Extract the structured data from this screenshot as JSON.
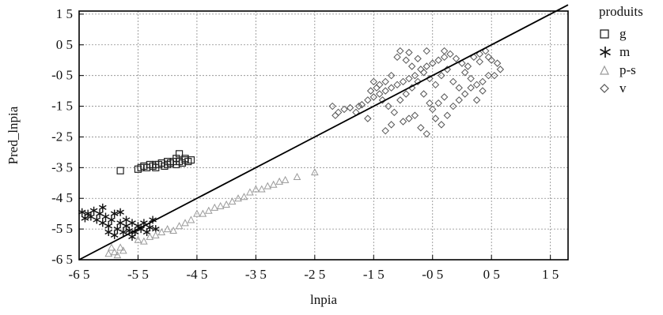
{
  "chart_data": {
    "type": "scatter",
    "title": "",
    "xlabel": "lnpia",
    "ylabel": "Pred_lnpia",
    "xlim": [
      -6.5,
      1.8
    ],
    "ylim": [
      -6.5,
      1.6
    ],
    "x_ticks": [
      -6.5,
      -5.5,
      -4.5,
      -3.5,
      -2.5,
      -1.5,
      -0.5,
      0.5,
      1.5
    ],
    "x_tick_labels": [
      "-6 5",
      "-5 5",
      "-4 5",
      "-3 5",
      "-2 5",
      "-1 5",
      "-0 5",
      "0 5",
      "1 5"
    ],
    "y_ticks": [
      -6.5,
      -5.5,
      -4.5,
      -3.5,
      -2.5,
      -1.5,
      -0.5,
      0.5,
      1.5
    ],
    "y_tick_labels": [
      "-6 5",
      "-5 5",
      "-4 5",
      "-3 5",
      "-2 5",
      "-1 5",
      "-0 5",
      "0 5",
      "1 5"
    ],
    "grid": true,
    "legend": {
      "title": "produits",
      "position": "right",
      "entries": [
        {
          "label": "g",
          "marker": "square",
          "color": "#222222"
        },
        {
          "label": "m",
          "marker": "asterisk",
          "color": "#111111"
        },
        {
          "label": "p-s",
          "marker": "triangle",
          "color": "#9a9a9a"
        },
        {
          "label": "v",
          "marker": "diamond",
          "color": "#555555"
        }
      ]
    },
    "reference_line": {
      "x": [
        -6.5,
        1.8
      ],
      "y": [
        -6.5,
        1.8
      ],
      "color": "#000000"
    },
    "series": [
      {
        "name": "g",
        "marker": "square",
        "color": "#222222",
        "points": [
          [
            -5.8,
            -3.6
          ],
          [
            -5.5,
            -3.55
          ],
          [
            -5.45,
            -3.5
          ],
          [
            -5.4,
            -3.45
          ],
          [
            -5.35,
            -3.5
          ],
          [
            -5.3,
            -3.4
          ],
          [
            -5.25,
            -3.45
          ],
          [
            -5.2,
            -3.5
          ],
          [
            -5.15,
            -3.4
          ],
          [
            -5.1,
            -3.35
          ],
          [
            -5.05,
            -3.45
          ],
          [
            -5.0,
            -3.4
          ],
          [
            -4.95,
            -3.35
          ],
          [
            -4.9,
            -3.3
          ],
          [
            -4.85,
            -3.4
          ],
          [
            -4.8,
            -3.3
          ],
          [
            -4.75,
            -3.35
          ],
          [
            -4.7,
            -3.25
          ],
          [
            -4.65,
            -3.3
          ],
          [
            -4.6,
            -3.25
          ],
          [
            -4.85,
            -3.2
          ],
          [
            -4.8,
            -3.05
          ],
          [
            -5.2,
            -3.4
          ],
          [
            -5.0,
            -3.3
          ],
          [
            -4.7,
            -3.2
          ]
        ]
      },
      {
        "name": "m",
        "marker": "asterisk",
        "color": "#111111",
        "points": [
          [
            -6.45,
            -4.95
          ],
          [
            -6.35,
            -5.0
          ],
          [
            -6.3,
            -5.1
          ],
          [
            -6.25,
            -4.9
          ],
          [
            -6.2,
            -5.2
          ],
          [
            -6.15,
            -5.0
          ],
          [
            -6.1,
            -5.3
          ],
          [
            -6.05,
            -5.1
          ],
          [
            -6.0,
            -5.4
          ],
          [
            -5.95,
            -5.2
          ],
          [
            -5.9,
            -5.0
          ],
          [
            -5.85,
            -5.5
          ],
          [
            -5.8,
            -5.3
          ],
          [
            -5.75,
            -5.6
          ],
          [
            -5.7,
            -5.4
          ],
          [
            -5.65,
            -5.55
          ],
          [
            -5.6,
            -5.3
          ],
          [
            -5.55,
            -5.6
          ],
          [
            -5.5,
            -5.4
          ],
          [
            -5.45,
            -5.5
          ],
          [
            -5.4,
            -5.3
          ],
          [
            -5.35,
            -5.6
          ],
          [
            -5.3,
            -5.45
          ],
          [
            -5.25,
            -5.2
          ],
          [
            -5.2,
            -5.5
          ],
          [
            -5.9,
            -5.7
          ],
          [
            -6.0,
            -5.6
          ],
          [
            -6.1,
            -4.8
          ],
          [
            -5.7,
            -5.2
          ],
          [
            -5.6,
            -5.75
          ],
          [
            -5.8,
            -4.95
          ],
          [
            -6.4,
            -5.15
          ]
        ]
      },
      {
        "name": "p-s",
        "marker": "triangle",
        "color": "#9a9a9a",
        "points": [
          [
            -6.0,
            -6.3
          ],
          [
            -5.95,
            -6.1
          ],
          [
            -5.9,
            -6.25
          ],
          [
            -5.85,
            -6.35
          ],
          [
            -5.8,
            -6.1
          ],
          [
            -5.75,
            -6.2
          ],
          [
            -5.5,
            -5.85
          ],
          [
            -5.4,
            -5.9
          ],
          [
            -5.3,
            -5.75
          ],
          [
            -5.2,
            -5.7
          ],
          [
            -5.1,
            -5.6
          ],
          [
            -5.0,
            -5.5
          ],
          [
            -4.9,
            -5.55
          ],
          [
            -4.8,
            -5.4
          ],
          [
            -4.7,
            -5.3
          ],
          [
            -4.6,
            -5.2
          ],
          [
            -4.5,
            -5.0
          ],
          [
            -4.4,
            -5.0
          ],
          [
            -4.3,
            -4.9
          ],
          [
            -4.2,
            -4.8
          ],
          [
            -4.1,
            -4.75
          ],
          [
            -4.0,
            -4.7
          ],
          [
            -3.9,
            -4.6
          ],
          [
            -3.8,
            -4.5
          ],
          [
            -3.7,
            -4.45
          ],
          [
            -3.6,
            -4.3
          ],
          [
            -3.5,
            -4.2
          ],
          [
            -3.4,
            -4.2
          ],
          [
            -3.3,
            -4.1
          ],
          [
            -3.2,
            -4.05
          ],
          [
            -3.1,
            -3.95
          ],
          [
            -3.0,
            -3.9
          ],
          [
            -2.8,
            -3.8
          ],
          [
            -2.5,
            -3.65
          ]
        ]
      },
      {
        "name": "v",
        "marker": "diamond",
        "color": "#555555",
        "points": [
          [
            -2.2,
            -1.5
          ],
          [
            -2.1,
            -1.7
          ],
          [
            -2.0,
            -1.6
          ],
          [
            -1.9,
            -1.55
          ],
          [
            -1.8,
            -1.7
          ],
          [
            -1.7,
            -1.45
          ],
          [
            -1.6,
            -1.3
          ],
          [
            -1.5,
            -1.2
          ],
          [
            -1.4,
            -1.1
          ],
          [
            -1.3,
            -1.0
          ],
          [
            -1.2,
            -0.9
          ],
          [
            -1.1,
            -0.8
          ],
          [
            -1.0,
            -0.7
          ],
          [
            -0.9,
            -0.6
          ],
          [
            -0.8,
            -0.5
          ],
          [
            -0.7,
            -0.3
          ],
          [
            -0.6,
            -0.2
          ],
          [
            -0.5,
            -0.1
          ],
          [
            -0.4,
            0.0
          ],
          [
            -0.3,
            0.1
          ],
          [
            -0.2,
            0.2
          ],
          [
            -0.1,
            0.05
          ],
          [
            0.0,
            -0.1
          ],
          [
            0.1,
            -0.2
          ],
          [
            0.2,
            0.1
          ],
          [
            0.3,
            0.2
          ],
          [
            0.4,
            0.3
          ],
          [
            0.5,
            0.0
          ],
          [
            0.6,
            -0.1
          ],
          [
            0.65,
            -0.3
          ],
          [
            -1.05,
            0.3
          ],
          [
            -0.95,
            0.0
          ],
          [
            -0.85,
            -0.2
          ],
          [
            -0.75,
            0.05
          ],
          [
            -0.65,
            -0.4
          ],
          [
            -0.55,
            -0.6
          ],
          [
            -0.45,
            -0.8
          ],
          [
            -0.35,
            -0.5
          ],
          [
            -0.25,
            -0.3
          ],
          [
            -0.15,
            -0.7
          ],
          [
            -0.05,
            -0.9
          ],
          [
            0.05,
            -0.4
          ],
          [
            0.15,
            -0.6
          ],
          [
            0.25,
            -0.8
          ],
          [
            0.35,
            -1.0
          ],
          [
            0.45,
            -0.5
          ],
          [
            -1.3,
            -2.3
          ],
          [
            -1.2,
            -2.1
          ],
          [
            -1.0,
            -2.0
          ],
          [
            -0.9,
            -1.9
          ],
          [
            -0.8,
            -1.8
          ],
          [
            -0.7,
            -2.2
          ],
          [
            -0.6,
            -2.4
          ],
          [
            -0.5,
            -1.6
          ],
          [
            -0.4,
            -1.4
          ],
          [
            -0.3,
            -1.2
          ],
          [
            -1.6,
            -1.9
          ],
          [
            -1.75,
            -1.5
          ],
          [
            -2.15,
            -1.8
          ],
          [
            -1.5,
            -0.7
          ],
          [
            -1.45,
            -0.9
          ],
          [
            -1.35,
            -1.3
          ],
          [
            -1.25,
            -1.5
          ],
          [
            -1.15,
            -1.7
          ],
          [
            -1.05,
            -1.3
          ],
          [
            -0.95,
            -1.1
          ],
          [
            -0.85,
            -0.9
          ],
          [
            -0.75,
            -0.7
          ],
          [
            -0.65,
            -1.1
          ],
          [
            -0.55,
            -1.4
          ],
          [
            -0.45,
            -1.9
          ],
          [
            -0.35,
            -2.1
          ],
          [
            -0.25,
            -1.8
          ],
          [
            -0.15,
            -1.5
          ],
          [
            -0.05,
            -1.3
          ],
          [
            0.05,
            -1.1
          ],
          [
            0.15,
            -0.9
          ],
          [
            0.25,
            -1.3
          ],
          [
            0.35,
            -0.7
          ],
          [
            0.55,
            -0.5
          ],
          [
            0.45,
            0.1
          ],
          [
            0.3,
            -0.05
          ],
          [
            -1.1,
            0.1
          ],
          [
            -0.9,
            0.25
          ],
          [
            -0.6,
            0.3
          ],
          [
            -0.3,
            0.3
          ],
          [
            -1.2,
            -0.5
          ],
          [
            -1.3,
            -0.7
          ],
          [
            -1.4,
            -0.8
          ],
          [
            -1.55,
            -1.0
          ]
        ]
      }
    ]
  }
}
